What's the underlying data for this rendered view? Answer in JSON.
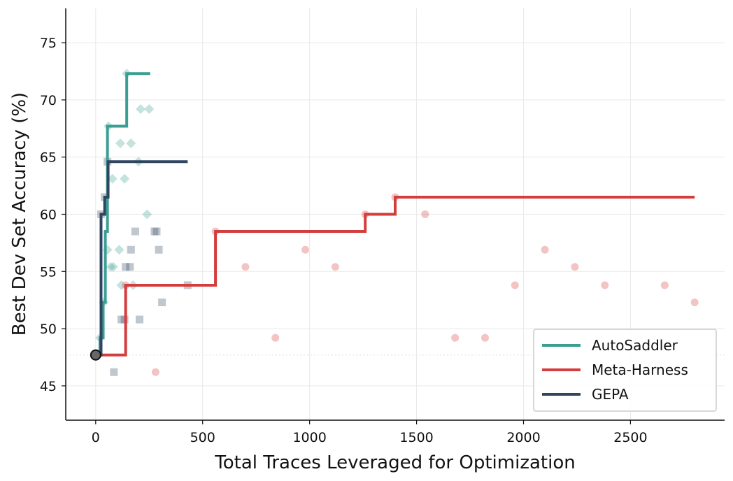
{
  "chart_data": {
    "type": "line",
    "title": "",
    "xlabel": "Total Traces Leveraged for Optimization",
    "ylabel": "Best Dev Set Accuracy (%)",
    "xlim": [
      -140,
      2940
    ],
    "ylim": [
      42,
      78
    ],
    "x_ticks": [
      0,
      500,
      1000,
      1500,
      2000,
      2500
    ],
    "y_ticks": [
      45,
      50,
      55,
      60,
      65,
      70,
      75
    ],
    "grid": true,
    "legend_position": "bottom-right",
    "start_point": {
      "x": 0,
      "y": 47.7
    },
    "series": [
      {
        "name": "AutoSaddler",
        "color": "#3a9e93",
        "marker": "diamond",
        "step_x": [
          0,
          20,
          20,
          35,
          35,
          45,
          45,
          55,
          55,
          62,
          62,
          145,
          145,
          255
        ],
        "step_y": [
          47.7,
          47.7,
          49.2,
          49.2,
          52.3,
          52.3,
          58.5,
          58.5,
          67.7,
          67.7,
          67.7,
          67.7,
          72.3,
          72.3
        ],
        "points": [
          {
            "x": 20,
            "y": 49.2
          },
          {
            "x": 38,
            "y": 52.3
          },
          {
            "x": 55,
            "y": 56.9
          },
          {
            "x": 60,
            "y": 67.7
          },
          {
            "x": 70,
            "y": 55.4
          },
          {
            "x": 78,
            "y": 63.1
          },
          {
            "x": 82,
            "y": 55.4
          },
          {
            "x": 110,
            "y": 56.9
          },
          {
            "x": 115,
            "y": 66.2
          },
          {
            "x": 120,
            "y": 53.8
          },
          {
            "x": 135,
            "y": 63.1
          },
          {
            "x": 145,
            "y": 72.3
          },
          {
            "x": 165,
            "y": 66.2
          },
          {
            "x": 175,
            "y": 53.8
          },
          {
            "x": 200,
            "y": 64.6
          },
          {
            "x": 210,
            "y": 69.2
          },
          {
            "x": 240,
            "y": 60.0
          },
          {
            "x": 250,
            "y": 69.2
          }
        ]
      },
      {
        "name": "Meta-Harness",
        "color": "#d43d3d",
        "marker": "circle",
        "step_x": [
          0,
          140,
          140,
          560,
          560,
          1260,
          1260,
          1400,
          1400,
          2800
        ],
        "step_y": [
          47.7,
          47.7,
          53.8,
          53.8,
          58.5,
          58.5,
          60.0,
          60.0,
          61.5,
          61.5
        ],
        "points": [
          {
            "x": 140,
            "y": 53.8
          },
          {
            "x": 280,
            "y": 46.2
          },
          {
            "x": 560,
            "y": 58.5
          },
          {
            "x": 700,
            "y": 55.4
          },
          {
            "x": 840,
            "y": 49.2
          },
          {
            "x": 980,
            "y": 56.9
          },
          {
            "x": 1120,
            "y": 55.4
          },
          {
            "x": 1260,
            "y": 60.0
          },
          {
            "x": 1400,
            "y": 61.5
          },
          {
            "x": 1540,
            "y": 60.0
          },
          {
            "x": 1680,
            "y": 49.2
          },
          {
            "x": 1820,
            "y": 49.2
          },
          {
            "x": 1960,
            "y": 53.8
          },
          {
            "x": 2100,
            "y": 56.9
          },
          {
            "x": 2240,
            "y": 55.4
          },
          {
            "x": 2380,
            "y": 53.8
          },
          {
            "x": 2660,
            "y": 53.8
          },
          {
            "x": 2800,
            "y": 52.3
          }
        ]
      },
      {
        "name": "GEPA",
        "color": "#2f4560",
        "marker": "square",
        "step_x": [
          0,
          25,
          25,
          32,
          32,
          42,
          42,
          50,
          50,
          58,
          58,
          430
        ],
        "step_y": [
          47.7,
          47.7,
          60.0,
          60.0,
          60.0,
          60.0,
          61.5,
          61.5,
          61.5,
          61.5,
          64.6,
          64.6
        ],
        "points": [
          {
            "x": 25,
            "y": 60.0
          },
          {
            "x": 42,
            "y": 61.5
          },
          {
            "x": 55,
            "y": 64.6
          },
          {
            "x": 85,
            "y": 46.2
          },
          {
            "x": 120,
            "y": 50.8
          },
          {
            "x": 135,
            "y": 50.8
          },
          {
            "x": 140,
            "y": 55.4
          },
          {
            "x": 160,
            "y": 55.4
          },
          {
            "x": 165,
            "y": 56.9
          },
          {
            "x": 185,
            "y": 58.5
          },
          {
            "x": 205,
            "y": 50.8
          },
          {
            "x": 275,
            "y": 58.5
          },
          {
            "x": 285,
            "y": 58.5
          },
          {
            "x": 295,
            "y": 56.9
          },
          {
            "x": 310,
            "y": 52.3
          },
          {
            "x": 430,
            "y": 53.8
          }
        ]
      }
    ]
  }
}
